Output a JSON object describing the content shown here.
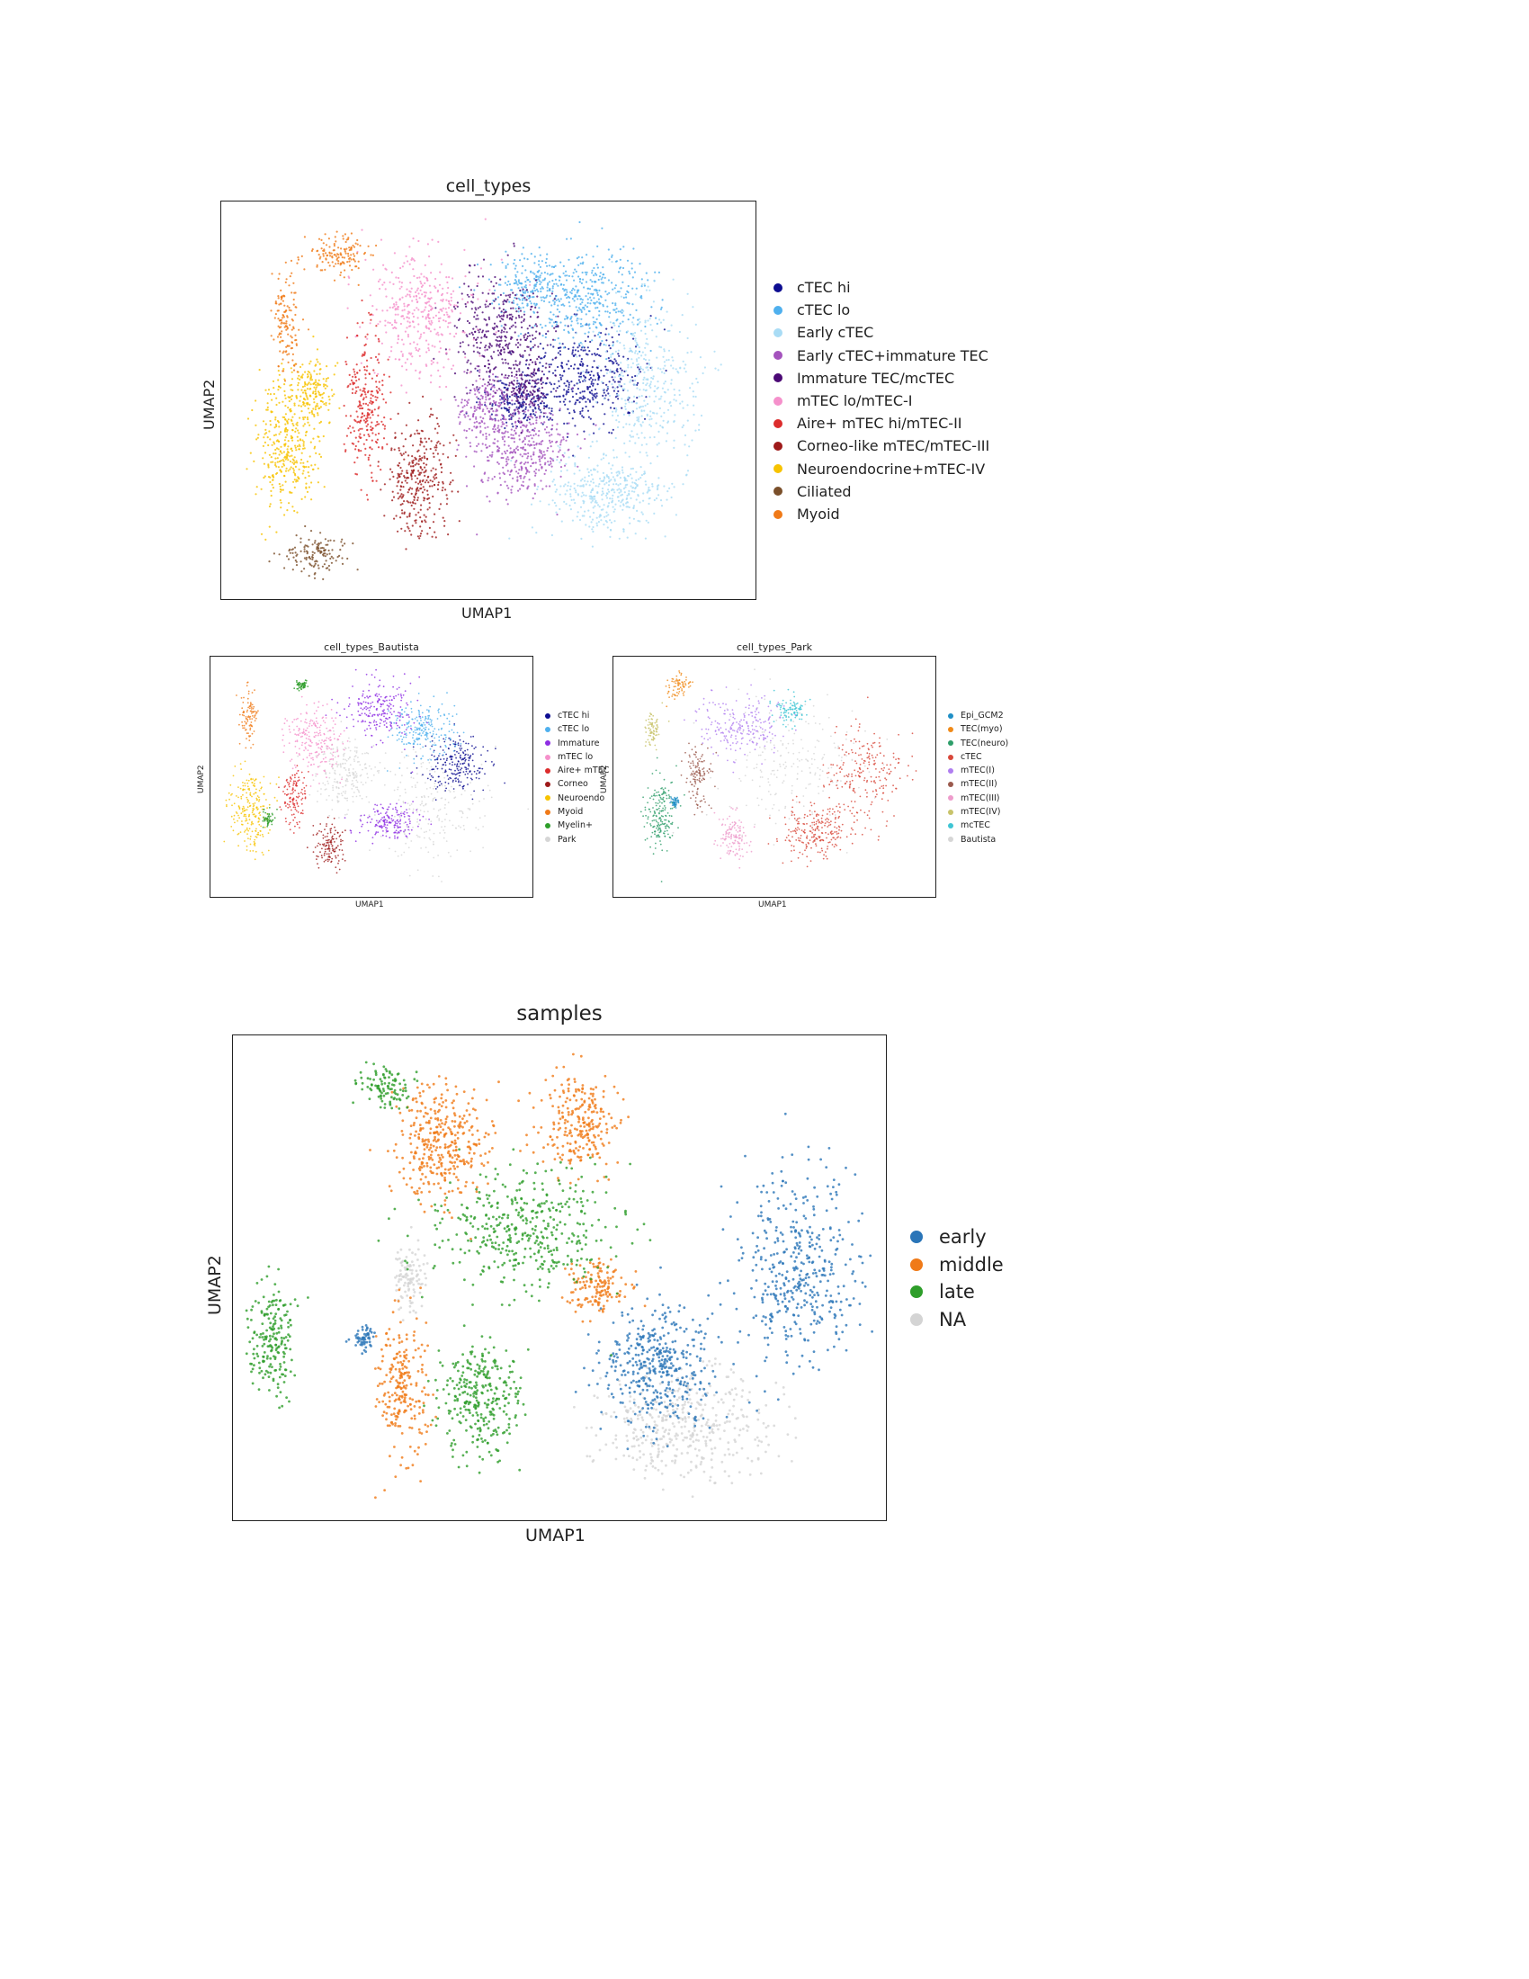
{
  "chart_data": [
    {
      "type": "scatter",
      "title": "cell_types",
      "xlabel": "UMAP1",
      "ylabel": "UMAP2",
      "legend_position": "right",
      "grid": false,
      "series": [
        {
          "name": "cTEC hi",
          "color": "#0d0d91",
          "region": [
            [
              0.68,
              0.44,
              0.09,
              0.1
            ],
            [
              0.56,
              0.5,
              0.06,
              0.05
            ]
          ]
        },
        {
          "name": "cTEC lo",
          "color": "#4fb0ee",
          "region": [
            [
              0.68,
              0.24,
              0.1,
              0.11
            ],
            [
              0.58,
              0.21,
              0.06,
              0.05
            ]
          ]
        },
        {
          "name": "Early cTEC",
          "color": "#a9dcf5",
          "region": [
            [
              0.79,
              0.45,
              0.08,
              0.17
            ],
            [
              0.72,
              0.73,
              0.09,
              0.09
            ]
          ]
        },
        {
          "name": "Early cTEC+immature TEC",
          "color": "#a453bd",
          "region": [
            [
              0.56,
              0.62,
              0.07,
              0.1
            ],
            [
              0.49,
              0.52,
              0.04,
              0.08
            ]
          ]
        },
        {
          "name": "Immature TEC/mcTEC",
          "color": "#4b0975",
          "region": [
            [
              0.52,
              0.33,
              0.07,
              0.12
            ],
            [
              0.57,
              0.46,
              0.04,
              0.06
            ]
          ]
        },
        {
          "name": "mTEC lo/mTEC-I",
          "color": "#f590cb",
          "region": [
            [
              0.37,
              0.28,
              0.08,
              0.13
            ]
          ]
        },
        {
          "name": "Aire+ mTEC hi/mTEC-II",
          "color": "#dc2c2c",
          "region": [
            [
              0.27,
              0.5,
              0.03,
              0.15
            ]
          ]
        },
        {
          "name": "Corneo-like mTEC/mTEC-III",
          "color": "#9e1a1a",
          "region": [
            [
              0.37,
              0.7,
              0.05,
              0.12
            ]
          ]
        },
        {
          "name": "Neuroendocrine+mTEC-IV",
          "color": "#f7c300",
          "region": [
            [
              0.12,
              0.61,
              0.05,
              0.13
            ],
            [
              0.17,
              0.48,
              0.04,
              0.07
            ]
          ]
        },
        {
          "name": "Ciliated",
          "color": "#7a4f2a",
          "region": [
            [
              0.18,
              0.88,
              0.05,
              0.04
            ]
          ]
        },
        {
          "name": "Myoid",
          "color": "#f07a18",
          "region": [
            [
              0.12,
              0.3,
              0.02,
              0.1
            ],
            [
              0.22,
              0.13,
              0.05,
              0.04
            ]
          ]
        }
      ]
    },
    {
      "type": "scatter",
      "title": "cell_types_Bautista",
      "xlabel": "UMAP1",
      "ylabel": "UMAP2",
      "legend_position": "right",
      "grid": false,
      "series": [
        {
          "name": "cTEC hi",
          "color": "#0d0d91",
          "region": [
            [
              0.75,
              0.45,
              0.08,
              0.1
            ]
          ]
        },
        {
          "name": "cTEC lo",
          "color": "#4fb0ee",
          "region": [
            [
              0.66,
              0.3,
              0.08,
              0.09
            ]
          ]
        },
        {
          "name": "Immature",
          "color": "#8e2ee3",
          "region": [
            [
              0.52,
              0.22,
              0.09,
              0.1
            ],
            [
              0.55,
              0.68,
              0.08,
              0.06
            ]
          ]
        },
        {
          "name": "mTEC lo",
          "color": "#f590cb",
          "region": [
            [
              0.32,
              0.35,
              0.07,
              0.12
            ]
          ]
        },
        {
          "name": "Aire+ mTEC",
          "color": "#dc2c2c",
          "region": [
            [
              0.26,
              0.58,
              0.03,
              0.1
            ]
          ]
        },
        {
          "name": "Corneo",
          "color": "#9e1a1a",
          "region": [
            [
              0.37,
              0.78,
              0.04,
              0.08
            ]
          ]
        },
        {
          "name": "Neuroendo",
          "color": "#f7c300",
          "region": [
            [
              0.12,
              0.62,
              0.05,
              0.15
            ]
          ]
        },
        {
          "name": "Myoid",
          "color": "#f07a18",
          "region": [
            [
              0.12,
              0.25,
              0.02,
              0.1
            ]
          ]
        },
        {
          "name": "Myelin+",
          "color": "#2e9e2a",
          "region": [
            [
              0.28,
              0.12,
              0.02,
              0.02
            ],
            [
              0.18,
              0.67,
              0.015,
              0.03
            ]
          ]
        },
        {
          "name": "Park",
          "color": "#d6d6d6",
          "region": [
            [
              0.68,
              0.62,
              0.14,
              0.2
            ],
            [
              0.42,
              0.48,
              0.08,
              0.12
            ]
          ]
        }
      ]
    },
    {
      "type": "scatter",
      "title": "cell_types_Park",
      "xlabel": "UMAP1",
      "ylabel": "UMAP2",
      "legend_position": "right",
      "grid": false,
      "series": [
        {
          "name": "Epi_GCM2",
          "color": "#1f8fc6",
          "region": [
            [
              0.19,
              0.6,
              0.01,
              0.02
            ]
          ]
        },
        {
          "name": "TEC(myo)",
          "color": "#f08a18",
          "region": [
            [
              0.2,
              0.12,
              0.03,
              0.04
            ]
          ]
        },
        {
          "name": "TEC(neuro)",
          "color": "#2e9e6a",
          "region": [
            [
              0.14,
              0.65,
              0.04,
              0.13
            ]
          ]
        },
        {
          "name": "cTEC",
          "color": "#d8473a",
          "region": [
            [
              0.78,
              0.5,
              0.1,
              0.18
            ],
            [
              0.62,
              0.72,
              0.08,
              0.1
            ]
          ]
        },
        {
          "name": "mTEC(I)",
          "color": "#b07ef0",
          "region": [
            [
              0.4,
              0.28,
              0.12,
              0.1
            ]
          ]
        },
        {
          "name": "mTEC(II)",
          "color": "#9b5a4d",
          "region": [
            [
              0.26,
              0.5,
              0.03,
              0.1
            ]
          ]
        },
        {
          "name": "mTEC(III)",
          "color": "#ee9ccc",
          "region": [
            [
              0.37,
              0.74,
              0.04,
              0.08
            ]
          ]
        },
        {
          "name": "mTEC(IV)",
          "color": "#c8c36a",
          "region": [
            [
              0.12,
              0.3,
              0.02,
              0.06
            ]
          ]
        },
        {
          "name": "mcTEC",
          "color": "#3fc5d4",
          "region": [
            [
              0.55,
              0.22,
              0.04,
              0.05
            ]
          ]
        },
        {
          "name": "Bautista",
          "color": "#d6d6d6",
          "region": [
            [
              0.55,
              0.45,
              0.18,
              0.22
            ]
          ]
        }
      ]
    },
    {
      "type": "scatter",
      "title": "samples",
      "xlabel": "UMAP1",
      "ylabel": "UMAP2",
      "legend_position": "right",
      "grid": false,
      "series": [
        {
          "name": "early",
          "color": "#2a75b8",
          "region": [
            [
              0.86,
              0.48,
              0.08,
              0.16
            ],
            [
              0.65,
              0.68,
              0.07,
              0.1
            ],
            [
              0.2,
              0.62,
              0.015,
              0.02
            ]
          ]
        },
        {
          "name": "middle",
          "color": "#f07a18",
          "region": [
            [
              0.32,
              0.22,
              0.06,
              0.1
            ],
            [
              0.53,
              0.18,
              0.05,
              0.08
            ],
            [
              0.55,
              0.52,
              0.04,
              0.05
            ],
            [
              0.26,
              0.72,
              0.03,
              0.12
            ]
          ]
        },
        {
          "name": "late",
          "color": "#2e9e2a",
          "region": [
            [
              0.44,
              0.4,
              0.12,
              0.1
            ],
            [
              0.38,
              0.75,
              0.05,
              0.1
            ],
            [
              0.06,
              0.62,
              0.03,
              0.1
            ],
            [
              0.23,
              0.1,
              0.03,
              0.04
            ]
          ]
        },
        {
          "name": "NA",
          "color": "#d4d4d4",
          "region": [
            [
              0.69,
              0.8,
              0.11,
              0.09
            ],
            [
              0.27,
              0.5,
              0.02,
              0.06
            ]
          ]
        }
      ]
    }
  ]
}
